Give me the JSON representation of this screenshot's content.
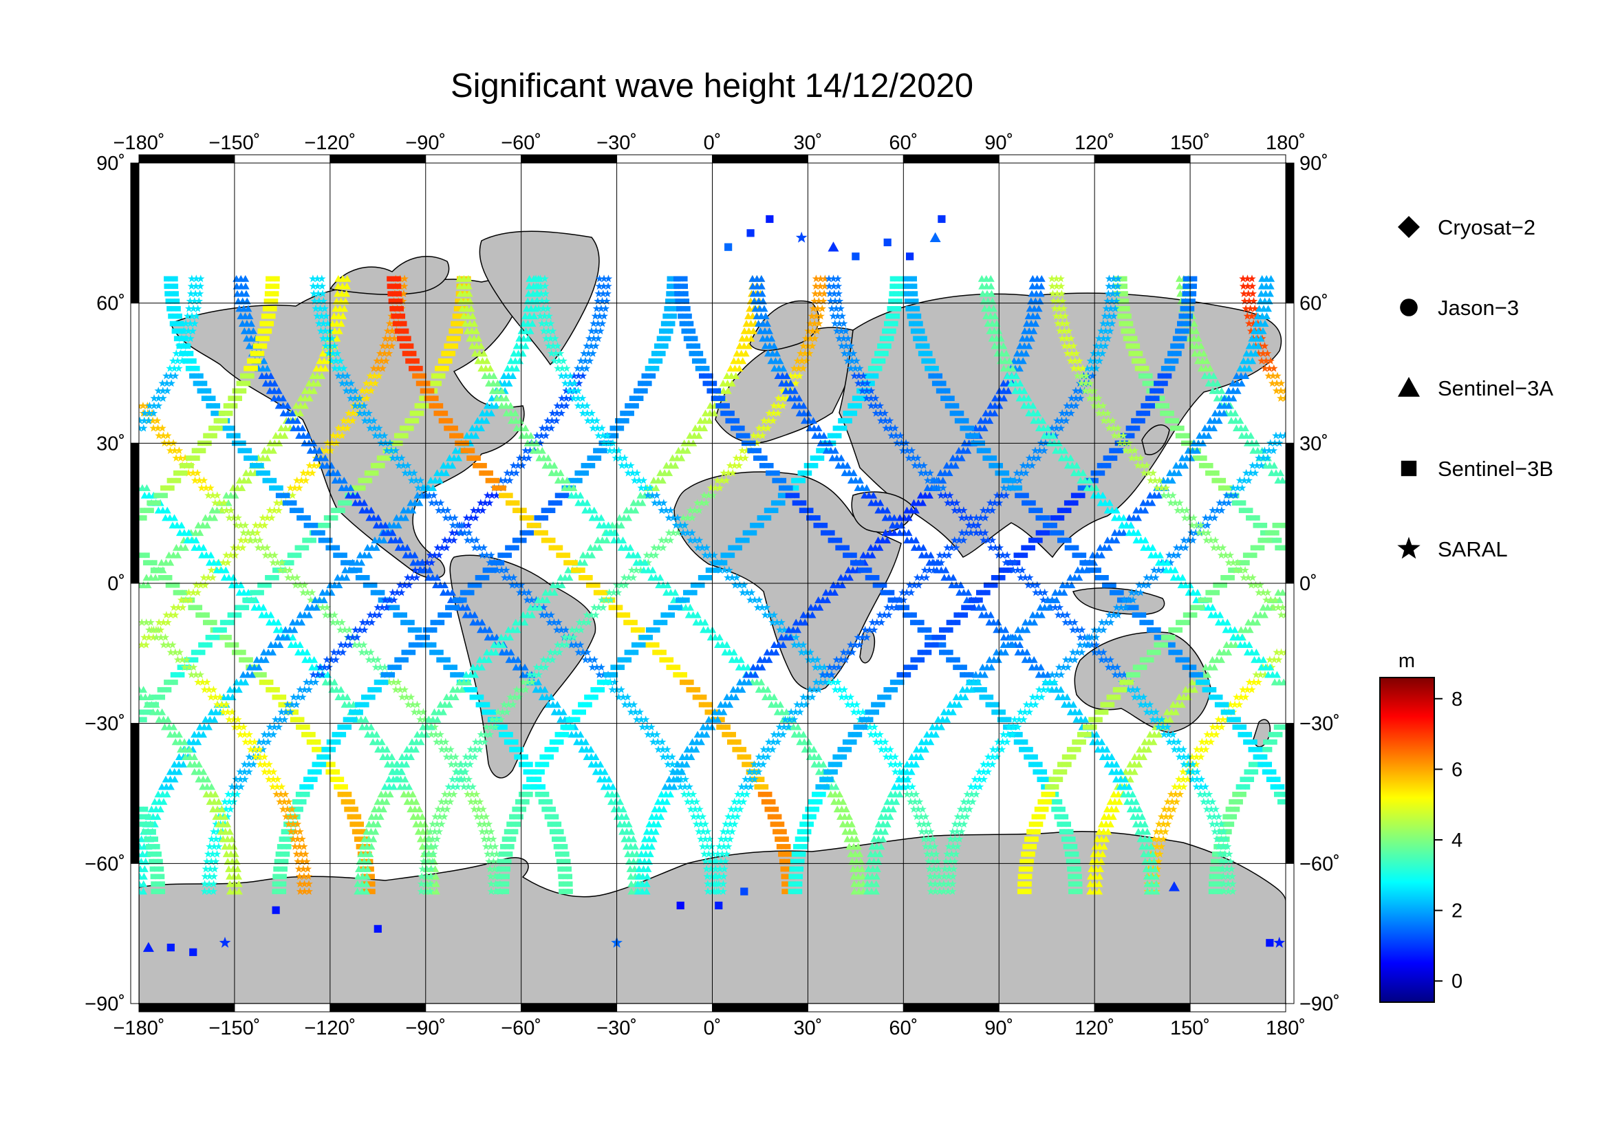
{
  "title": "Significant wave height 14/12/2020",
  "map": {
    "projection": "equirectangular",
    "lon_range": [
      -180,
      180
    ],
    "lat_range": [
      -90,
      90
    ],
    "lon_ticks": [
      -180,
      -150,
      -120,
      -90,
      -60,
      -30,
      0,
      30,
      60,
      90,
      120,
      150,
      180
    ],
    "lat_ticks": [
      90,
      60,
      30,
      0,
      -30,
      -60,
      -90
    ],
    "lon_labels": [
      "−180˚",
      "−150˚",
      "−120˚",
      "−90˚",
      "−60˚",
      "−30˚",
      "0˚",
      "30˚",
      "60˚",
      "90˚",
      "120˚",
      "150˚",
      "180˚"
    ],
    "lat_labels": [
      "90˚",
      "60˚",
      "30˚",
      "0˚",
      "−30˚",
      "−60˚",
      "−90˚"
    ],
    "grid": true,
    "land_color": "#bebebe",
    "ocean_color": "#ffffff"
  },
  "legend": {
    "placement": "right",
    "items": [
      {
        "label": "Cryosat−2",
        "marker": "diamond"
      },
      {
        "label": "Jason−3",
        "marker": "circle"
      },
      {
        "label": "Sentinel−3A",
        "marker": "triangle"
      },
      {
        "label": "Sentinel−3B",
        "marker": "square"
      },
      {
        "label": "SARAL",
        "marker": "star"
      }
    ]
  },
  "colorbar": {
    "unit": "m",
    "range": [
      -0.6,
      8.6
    ],
    "ticks": [
      0,
      2,
      4,
      6,
      8
    ],
    "tick_labels": [
      "0",
      "2",
      "4",
      "6",
      "8"
    ],
    "colormap": "jet"
  },
  "chart_data": {
    "type": "scatter",
    "description_units": "longitude (deg), latitude (deg), significant wave height (m)",
    "tracks": [
      {
        "lon0": -178,
        "slope": 1,
        "hs_north": 4.5,
        "hs_south": 4.5
      },
      {
        "lon0": -170,
        "slope": -1,
        "hs_north": 3.5,
        "hs_south": 5.5
      },
      {
        "lon0": -160,
        "slope": 1,
        "hs_north": 5.5,
        "hs_south": 5.0
      },
      {
        "lon0": -150,
        "slope": -1,
        "hs_north": 3.5,
        "hs_south": 3.5
      },
      {
        "lon0": -140,
        "slope": 1,
        "hs_north": 5.0,
        "hs_south": 3.0
      },
      {
        "lon0": -130,
        "slope": -1,
        "hs_north": 6.5,
        "hs_south": 3.0
      },
      {
        "lon0": -118,
        "slope": 1,
        "hs_north": 2.5,
        "hs_south": 2.5
      },
      {
        "lon0": -108,
        "slope": -1,
        "hs_north": 2.0,
        "hs_south": 3.0
      },
      {
        "lon0": -96,
        "slope": 1,
        "hs_north": 1.0,
        "hs_south": 2.5
      },
      {
        "lon0": -86,
        "slope": -1,
        "hs_north": 1.0,
        "hs_south": 3.0
      },
      {
        "lon0": -74,
        "slope": 1,
        "hs_north": 1.5,
        "hs_south": 3.0
      },
      {
        "lon0": -62,
        "slope": -1,
        "hs_north": 2.0,
        "hs_south": 2.5
      },
      {
        "lon0": -48,
        "slope": 1,
        "hs_north": 5.0,
        "hs_south": 3.0
      },
      {
        "lon0": -38,
        "slope": -1,
        "hs_north": 6.5,
        "hs_south": 5.5
      },
      {
        "lon0": -28,
        "slope": 1,
        "hs_north": 5.5,
        "hs_south": 3.0
      },
      {
        "lon0": -16,
        "slope": -1,
        "hs_north": 4.0,
        "hs_south": 3.5
      },
      {
        "lon0": -4,
        "slope": 1,
        "hs_north": 2.5,
        "hs_south": 3.0
      },
      {
        "lon0": 8,
        "slope": -1,
        "hs_north": 2.5,
        "hs_south": 3.0
      },
      {
        "lon0": 40,
        "slope": 1,
        "hs_north": 1.0,
        "hs_south": 2.5
      },
      {
        "lon0": 52,
        "slope": -1,
        "hs_north": 1.0,
        "hs_south": 3.0
      },
      {
        "lon0": 64,
        "slope": 1,
        "hs_north": 1.5,
        "hs_south": 2.5
      },
      {
        "lon0": 76,
        "slope": -1,
        "hs_north": 1.0,
        "hs_south": 3.0
      },
      {
        "lon0": 88,
        "slope": 1,
        "hs_north": 1.0,
        "hs_south": 2.5
      },
      {
        "lon0": 100,
        "slope": -1,
        "hs_north": 1.0,
        "hs_south": 3.0
      },
      {
        "lon0": 112,
        "slope": 1,
        "hs_north": 1.5,
        "hs_south": 3.0
      },
      {
        "lon0": 124,
        "slope": -1,
        "hs_north": 1.5,
        "hs_south": 3.0
      },
      {
        "lon0": 136,
        "slope": 1,
        "hs_north": 2.0,
        "hs_south": 3.0
      },
      {
        "lon0": 148,
        "slope": -1,
        "hs_north": 3.0,
        "hs_south": 4.0
      },
      {
        "lon0": 160,
        "slope": 1,
        "hs_north": 4.5,
        "hs_south": 4.5
      },
      {
        "lon0": 170,
        "slope": -1,
        "hs_north": 4.0,
        "hs_south": 5.5
      }
    ],
    "arctic_points": [
      {
        "lon": 5,
        "lat": 72,
        "hs": 1.5,
        "marker": "square"
      },
      {
        "lon": 12,
        "lat": 75,
        "hs": 1.0,
        "marker": "square"
      },
      {
        "lon": 18,
        "lat": 78,
        "hs": 0.8,
        "marker": "square"
      },
      {
        "lon": 28,
        "lat": 74,
        "hs": 1.2,
        "marker": "star"
      },
      {
        "lon": 38,
        "lat": 72,
        "hs": 1.0,
        "marker": "triangle"
      },
      {
        "lon": 45,
        "lat": 70,
        "hs": 1.3,
        "marker": "square"
      },
      {
        "lon": 55,
        "lat": 73,
        "hs": 1.2,
        "marker": "square"
      },
      {
        "lon": 62,
        "lat": 70,
        "hs": 1.0,
        "marker": "square"
      },
      {
        "lon": 70,
        "lat": 74,
        "hs": 1.5,
        "marker": "triangle"
      },
      {
        "lon": 72,
        "lat": 78,
        "hs": 1.0,
        "marker": "square"
      }
    ],
    "antarctic_points": [
      {
        "lon": -177,
        "lat": -78,
        "hs": 0.8,
        "marker": "triangle"
      },
      {
        "lon": -170,
        "lat": -78,
        "hs": 0.8,
        "marker": "square"
      },
      {
        "lon": -163,
        "lat": -79,
        "hs": 0.8,
        "marker": "square"
      },
      {
        "lon": -153,
        "lat": -77,
        "hs": 1.0,
        "marker": "star"
      },
      {
        "lon": -137,
        "lat": -70,
        "hs": 0.7,
        "marker": "square"
      },
      {
        "lon": -105,
        "lat": -74,
        "hs": 0.7,
        "marker": "square"
      },
      {
        "lon": -30,
        "lat": -77,
        "hs": 1.5,
        "marker": "star"
      },
      {
        "lon": -10,
        "lat": -69,
        "hs": 0.6,
        "marker": "square"
      },
      {
        "lon": 2,
        "lat": -69,
        "hs": 0.8,
        "marker": "square"
      },
      {
        "lon": 10,
        "lat": -66,
        "hs": 1.2,
        "marker": "square"
      },
      {
        "lon": 145,
        "lat": -65,
        "hs": 1.0,
        "marker": "triangle"
      },
      {
        "lon": 175,
        "lat": -77,
        "hs": 0.7,
        "marker": "square"
      },
      {
        "lon": 178,
        "lat": -77,
        "hs": 0.8,
        "marker": "star"
      }
    ]
  }
}
